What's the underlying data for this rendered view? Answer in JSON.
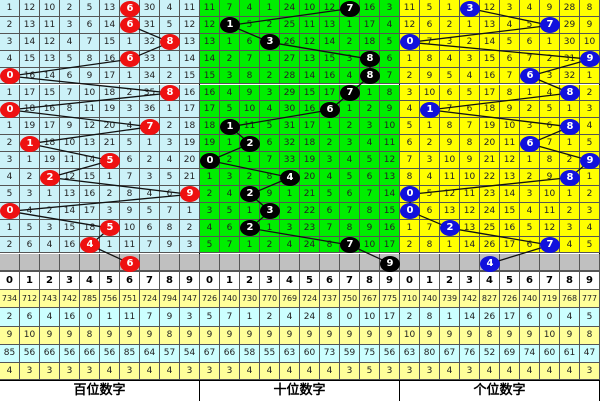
{
  "colors": {
    "hundreds_bg": "#ccf2f8",
    "tens_bg": "#00ee00",
    "ones_bg": "#ffff00",
    "hundreds_ball": "#ee1111",
    "tens_ball": "#000000",
    "ones_ball": "#1111dd",
    "stat_yellow": "#ffff99",
    "stat_cyan": "#ccffff",
    "next_row": "#c0c0c0"
  },
  "panels": [
    {
      "label": "百位数字",
      "key": "hundreds",
      "rows": [
        [
          "1",
          "12",
          "10",
          "2",
          "5",
          "13",
          "6",
          "30",
          "4",
          "11"
        ],
        [
          "2",
          "13",
          "11",
          "3",
          "6",
          "14",
          "6",
          "31",
          "5",
          "12"
        ],
        [
          "3",
          "14",
          "12",
          "4",
          "7",
          "15",
          "1",
          "32",
          "8",
          "13"
        ],
        [
          "4",
          "15",
          "13",
          "5",
          "8",
          "16",
          "6",
          "33",
          "1",
          "14"
        ],
        [
          "0",
          "16",
          "14",
          "6",
          "9",
          "17",
          "1",
          "34",
          "2",
          "15"
        ],
        [
          "1",
          "17",
          "15",
          "7",
          "10",
          "18",
          "2",
          "35",
          "8",
          "16"
        ],
        [
          "0",
          "18",
          "16",
          "8",
          "11",
          "19",
          "3",
          "36",
          "1",
          "17"
        ],
        [
          "1",
          "19",
          "17",
          "9",
          "12",
          "20",
          "4",
          "7",
          "2",
          "18"
        ],
        [
          "2",
          "1",
          "18",
          "10",
          "13",
          "21",
          "5",
          "1",
          "3",
          "19"
        ],
        [
          "3",
          "1",
          "19",
          "11",
          "14",
          "5",
          "6",
          "2",
          "4",
          "20"
        ],
        [
          "4",
          "2",
          "2",
          "12",
          "15",
          "1",
          "7",
          "3",
          "5",
          "21"
        ],
        [
          "5",
          "3",
          "1",
          "13",
          "16",
          "2",
          "8",
          "4",
          "6",
          "9"
        ],
        [
          "0",
          "4",
          "2",
          "14",
          "17",
          "3",
          "9",
          "5",
          "7",
          "1"
        ],
        [
          "1",
          "5",
          "3",
          "15",
          "18",
          "5",
          "10",
          "6",
          "8",
          "2"
        ],
        [
          "2",
          "6",
          "4",
          "16",
          "4",
          "1",
          "11",
          "7",
          "9",
          "3"
        ]
      ],
      "hits": [
        6,
        6,
        8,
        6,
        0,
        8,
        0,
        7,
        1,
        5,
        2,
        9,
        0,
        5,
        4
      ],
      "next": 6,
      "header": [
        "0",
        "1",
        "2",
        "3",
        "4",
        "5",
        "6",
        "7",
        "8",
        "9"
      ],
      "stats": [
        [
          "734",
          "712",
          "743",
          "742",
          "785",
          "756",
          "751",
          "724",
          "794",
          "747"
        ],
        [
          "2",
          "6",
          "4",
          "16",
          "0",
          "1",
          "11",
          "7",
          "9",
          "3"
        ],
        [
          "9",
          "10",
          "9",
          "9",
          "8",
          "9",
          "9",
          "9",
          "8",
          "9"
        ],
        [
          "85",
          "56",
          "66",
          "56",
          "66",
          "56",
          "85",
          "64",
          "57",
          "54"
        ],
        [
          "4",
          "3",
          "3",
          "3",
          "3",
          "4",
          "3",
          "4",
          "4",
          "3"
        ]
      ]
    },
    {
      "label": "十位数字",
      "key": "tens",
      "rows": [
        [
          "11",
          "7",
          "4",
          "1",
          "24",
          "10",
          "12",
          "7",
          "16",
          "3"
        ],
        [
          "12",
          "1",
          "5",
          "2",
          "25",
          "11",
          "13",
          "1",
          "17",
          "4"
        ],
        [
          "13",
          "1",
          "6",
          "3",
          "26",
          "12",
          "14",
          "2",
          "18",
          "5"
        ],
        [
          "14",
          "2",
          "7",
          "1",
          "27",
          "13",
          "15",
          "3",
          "8",
          "6"
        ],
        [
          "15",
          "3",
          "8",
          "2",
          "28",
          "14",
          "16",
          "4",
          "8",
          "7"
        ],
        [
          "16",
          "4",
          "9",
          "3",
          "29",
          "15",
          "17",
          "7",
          "1",
          "8"
        ],
        [
          "17",
          "5",
          "10",
          "4",
          "30",
          "16",
          "6",
          "1",
          "2",
          "9"
        ],
        [
          "18",
          "1",
          "11",
          "5",
          "31",
          "17",
          "1",
          "2",
          "3",
          "10"
        ],
        [
          "19",
          "1",
          "2",
          "6",
          "32",
          "18",
          "2",
          "3",
          "4",
          "11"
        ],
        [
          "0",
          "2",
          "1",
          "7",
          "33",
          "19",
          "3",
          "4",
          "5",
          "12"
        ],
        [
          "1",
          "3",
          "2",
          "8",
          "4",
          "20",
          "4",
          "5",
          "6",
          "13"
        ],
        [
          "2",
          "4",
          "2",
          "9",
          "1",
          "21",
          "5",
          "6",
          "7",
          "14"
        ],
        [
          "3",
          "5",
          "1",
          "3",
          "2",
          "22",
          "6",
          "7",
          "8",
          "15"
        ],
        [
          "4",
          "6",
          "2",
          "1",
          "3",
          "23",
          "7",
          "8",
          "9",
          "16"
        ],
        [
          "5",
          "7",
          "1",
          "2",
          "4",
          "24",
          "8",
          "7",
          "10",
          "17"
        ]
      ],
      "hits": [
        7,
        1,
        3,
        8,
        8,
        7,
        6,
        1,
        2,
        0,
        4,
        2,
        3,
        2,
        7
      ],
      "next": 9,
      "header": [
        "0",
        "1",
        "2",
        "3",
        "4",
        "5",
        "6",
        "7",
        "8",
        "9"
      ],
      "stats": [
        [
          "726",
          "740",
          "730",
          "770",
          "769",
          "724",
          "737",
          "750",
          "767",
          "775"
        ],
        [
          "5",
          "7",
          "1",
          "2",
          "4",
          "24",
          "8",
          "0",
          "10",
          "17"
        ],
        [
          "9",
          "9",
          "9",
          "9",
          "9",
          "9",
          "9",
          "9",
          "9",
          "9"
        ],
        [
          "67",
          "66",
          "58",
          "55",
          "63",
          "60",
          "73",
          "59",
          "75",
          "56"
        ],
        [
          "3",
          "3",
          "4",
          "4",
          "4",
          "4",
          "4",
          "3",
          "5",
          "3"
        ]
      ]
    },
    {
      "label": "个位数字",
      "key": "ones",
      "rows": [
        [
          "11",
          "5",
          "1",
          "3",
          "12",
          "3",
          "4",
          "9",
          "28",
          "8"
        ],
        [
          "12",
          "6",
          "2",
          "1",
          "13",
          "4",
          "5",
          "7",
          "29",
          "9"
        ],
        [
          "0",
          "7",
          "3",
          "2",
          "14",
          "5",
          "6",
          "1",
          "30",
          "10"
        ],
        [
          "1",
          "8",
          "4",
          "3",
          "15",
          "6",
          "7",
          "2",
          "31",
          "9"
        ],
        [
          "2",
          "9",
          "5",
          "4",
          "16",
          "7",
          "6",
          "3",
          "32",
          "1"
        ],
        [
          "3",
          "10",
          "6",
          "5",
          "17",
          "8",
          "1",
          "4",
          "8",
          "2"
        ],
        [
          "4",
          "1",
          "7",
          "6",
          "18",
          "9",
          "2",
          "5",
          "1",
          "3"
        ],
        [
          "5",
          "1",
          "8",
          "7",
          "19",
          "10",
          "3",
          "6",
          "8",
          "4"
        ],
        [
          "6",
          "2",
          "9",
          "8",
          "20",
          "11",
          "6",
          "7",
          "1",
          "5"
        ],
        [
          "7",
          "3",
          "10",
          "9",
          "21",
          "12",
          "1",
          "8",
          "2",
          "9"
        ],
        [
          "8",
          "4",
          "11",
          "10",
          "22",
          "13",
          "2",
          "9",
          "8",
          "1"
        ],
        [
          "0",
          "5",
          "12",
          "11",
          "23",
          "14",
          "3",
          "10",
          "1",
          "2"
        ],
        [
          "0",
          "6",
          "13",
          "12",
          "24",
          "15",
          "4",
          "11",
          "2",
          "3"
        ],
        [
          "1",
          "7",
          "2",
          "13",
          "25",
          "16",
          "5",
          "12",
          "3",
          "4"
        ],
        [
          "2",
          "8",
          "1",
          "14",
          "26",
          "17",
          "6",
          "7",
          "4",
          "5"
        ]
      ],
      "hits": [
        3,
        7,
        0,
        9,
        6,
        8,
        1,
        8,
        6,
        9,
        8,
        0,
        0,
        2,
        7
      ],
      "next": 4,
      "header": [
        "0",
        "1",
        "2",
        "3",
        "4",
        "5",
        "6",
        "7",
        "8",
        "9"
      ],
      "stats": [
        [
          "710",
          "740",
          "739",
          "742",
          "827",
          "726",
          "740",
          "719",
          "768",
          "777"
        ],
        [
          "2",
          "8",
          "1",
          "14",
          "26",
          "17",
          "6",
          "0",
          "4",
          "5"
        ],
        [
          "10",
          "9",
          "9",
          "9",
          "8",
          "9",
          "9",
          "10",
          "9",
          "8"
        ],
        [
          "63",
          "80",
          "67",
          "76",
          "52",
          "69",
          "74",
          "60",
          "61",
          "47"
        ],
        [
          "3",
          "3",
          "4",
          "3",
          "4",
          "4",
          "4",
          "4",
          "4",
          "3"
        ]
      ]
    }
  ]
}
